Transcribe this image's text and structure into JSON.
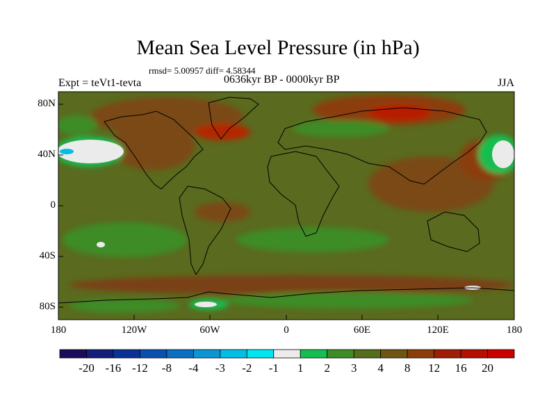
{
  "header": {
    "title": "Mean Sea Level Pressure (in hPa)",
    "stats": "rmsd= 5.00957 diff= 4.58344",
    "experiment": "Expt = teVt1-tevta",
    "period": "0636kyr BP - 0000kyr BP",
    "season": "JJA"
  },
  "axes": {
    "y_ticks": [
      "80N",
      "40N",
      "0",
      "40S",
      "80S"
    ],
    "x_ticks": [
      "180",
      "120W",
      "60W",
      "0",
      "60E",
      "120E",
      "180"
    ]
  },
  "colorbar": {
    "labels": [
      "-20",
      "-16",
      "-12",
      "-8",
      "-4",
      "-3",
      "-2",
      "-1",
      "1",
      "2",
      "3",
      "4",
      "8",
      "12",
      "16",
      "20"
    ],
    "colors": [
      "#1a0c5a",
      "#141e78",
      "#0a3296",
      "#0a50af",
      "#0a6ec3",
      "#0a96d2",
      "#00bee6",
      "#00e6f0",
      "#ebebeb",
      "#14be50",
      "#3c8c28",
      "#556e1e",
      "#6e5514",
      "#8c3c0a",
      "#a01e05",
      "#b40f00",
      "#c80000"
    ]
  },
  "map": {
    "background": "#5a6a1e"
  }
}
